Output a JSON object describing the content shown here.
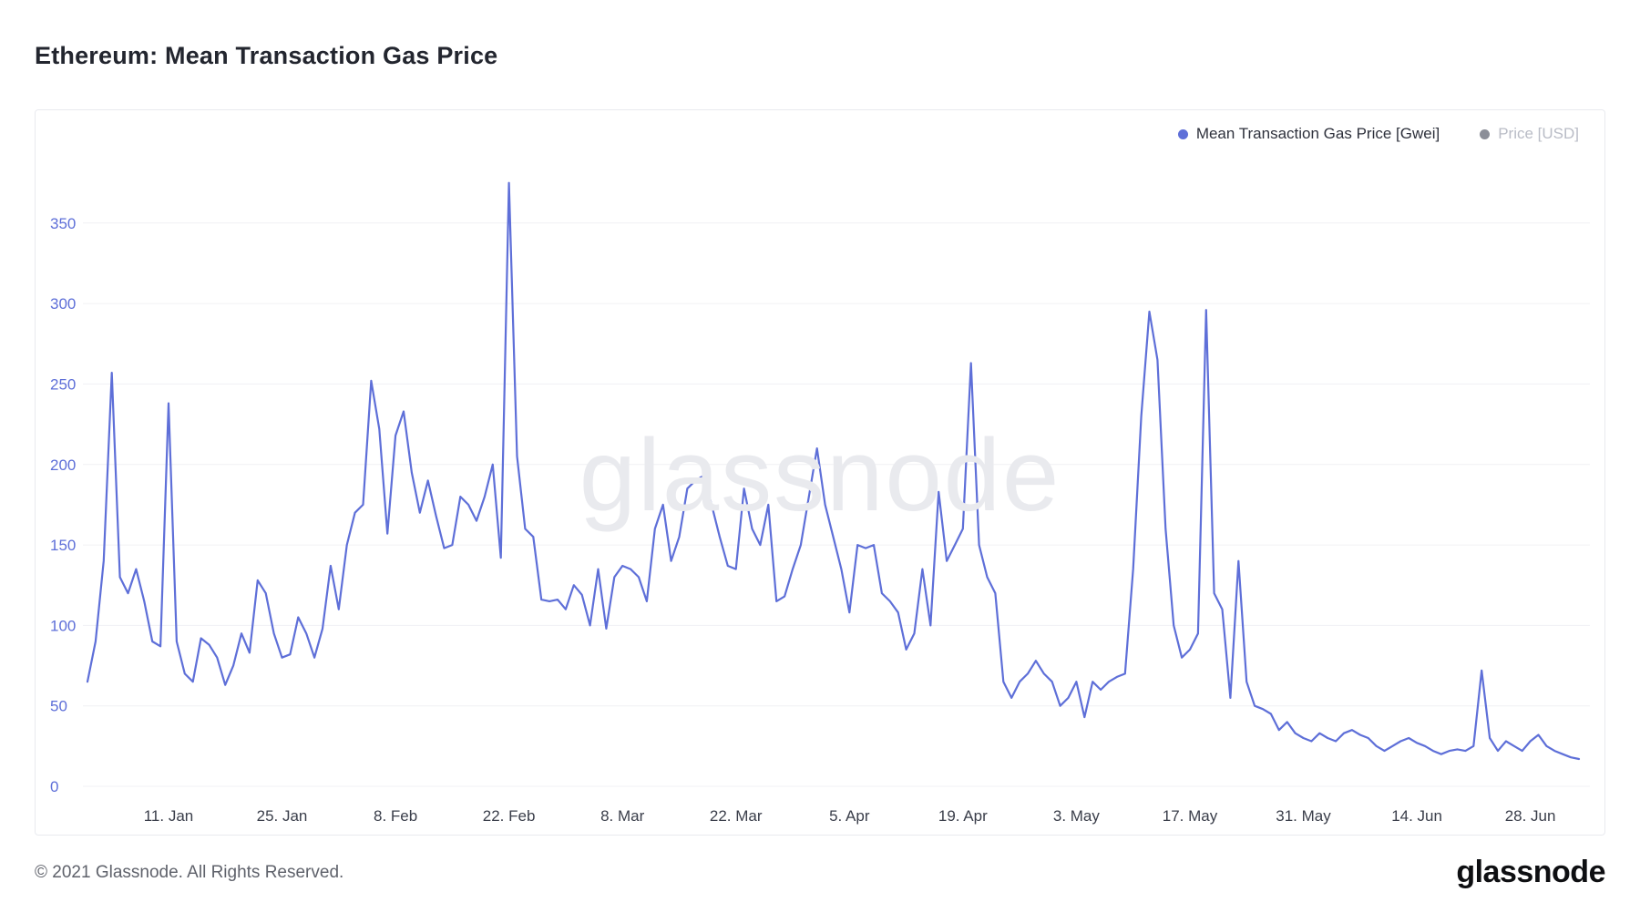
{
  "page": {
    "title": "Ethereum: Mean Transaction Gas Price",
    "watermark": "glassnode",
    "footer_copyright": "© 2021 Glassnode. All Rights Reserved.",
    "brand_logo": "glassnode"
  },
  "legend": {
    "items": [
      {
        "label": "Mean Transaction Gas Price [Gwei]",
        "color": "#5e6fd8",
        "active": true
      },
      {
        "label": "Price [USD]",
        "color": "#8b8e98",
        "active": false
      }
    ]
  },
  "chart_data": {
    "type": "line",
    "title": "Ethereum: Mean Transaction Gas Price",
    "ylabel": "Mean Transaction Gas Price [Gwei]",
    "unit": "Gwei",
    "ylim": [
      0,
      385
    ],
    "y_ticks": [
      0,
      50,
      100,
      150,
      200,
      250,
      300,
      350
    ],
    "grid": "horizontal",
    "legend_position": "top-right",
    "start_date": "2021-01-01",
    "x_tick_labels": [
      "11. Jan",
      "25. Jan",
      "8. Feb",
      "22. Feb",
      "8. Mar",
      "22. Mar",
      "5. Apr",
      "19. Apr",
      "3. May",
      "17. May",
      "31. May",
      "14. Jun",
      "28. Jun"
    ],
    "x_tick_days": [
      10,
      24,
      38,
      52,
      66,
      80,
      94,
      108,
      122,
      136,
      150,
      164,
      178
    ],
    "series": [
      {
        "name": "Mean Transaction Gas Price [Gwei]",
        "color": "#5e6fd8",
        "values": [
          65,
          90,
          140,
          257,
          130,
          120,
          135,
          115,
          90,
          87,
          238,
          90,
          70,
          65,
          92,
          88,
          80,
          63,
          75,
          95,
          83,
          128,
          120,
          95,
          80,
          82,
          105,
          95,
          80,
          98,
          137,
          110,
          150,
          170,
          175,
          252,
          222,
          157,
          218,
          233,
          195,
          170,
          190,
          168,
          148,
          150,
          180,
          175,
          165,
          180,
          200,
          142,
          375,
          205,
          160,
          155,
          116,
          115,
          116,
          110,
          125,
          119,
          100,
          135,
          98,
          130,
          137,
          135,
          130,
          115,
          160,
          175,
          140,
          155,
          185,
          190,
          193,
          175,
          155,
          137,
          135,
          185,
          160,
          150,
          175,
          115,
          118,
          135,
          150,
          180,
          210,
          175,
          155,
          135,
          108,
          150,
          148,
          150,
          120,
          115,
          108,
          85,
          95,
          135,
          100,
          183,
          140,
          150,
          160,
          263,
          150,
          130,
          120,
          65,
          55,
          65,
          70,
          78,
          70,
          65,
          50,
          55,
          65,
          43,
          65,
          60,
          65,
          68,
          70,
          135,
          230,
          295,
          265,
          160,
          100,
          80,
          85,
          95,
          296,
          120,
          110,
          55,
          140,
          65,
          50,
          48,
          45,
          35,
          40,
          33,
          30,
          28,
          33,
          30,
          28,
          33,
          35,
          32,
          30,
          25,
          22,
          25,
          28,
          30,
          27,
          25,
          22,
          20,
          22,
          23,
          22,
          25,
          72,
          30,
          22,
          28,
          25,
          22,
          28,
          32,
          25,
          22,
          20,
          18,
          17
        ]
      }
    ],
    "colors": {
      "line": "#5e6fd8",
      "grid": "#f0f1f4",
      "y_tick_label": "#5e6fd8",
      "x_tick_label": "#3a3e4a"
    }
  }
}
